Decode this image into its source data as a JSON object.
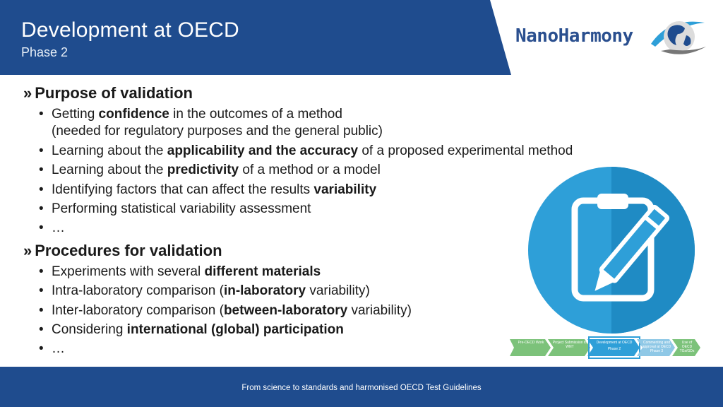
{
  "header": {
    "title": "Development at OECD",
    "subtitle": "Phase 2",
    "brand": "NanoHarmony",
    "band_color": "#1f4c8e"
  },
  "sections": [
    {
      "title": "Purpose of validation",
      "items": [
        {
          "pre": "Getting ",
          "bold": "confidence",
          "post": " in the outcomes of a method",
          "cont": "(needed for regulatory purposes and the general public)"
        },
        {
          "pre": "Learning about the ",
          "bold": "applicability and the accuracy",
          "post": " of a proposed experimental method"
        },
        {
          "pre": "Learning about the ",
          "bold": "predictivity",
          "post": " of a method or a model"
        },
        {
          "pre": "Identifying factors that can affect the results ",
          "bold": "variability",
          "post": ""
        },
        {
          "pre": "Performing statistical variability assessment",
          "bold": "",
          "post": ""
        },
        {
          "pre": "…",
          "bold": "",
          "post": ""
        }
      ]
    },
    {
      "title": "Procedures for validation",
      "items": [
        {
          "pre": "Experiments with several ",
          "bold": "different materials",
          "post": ""
        },
        {
          "pre": "Intra-laboratory comparison (",
          "bold": "in-laboratory",
          "post": " variability)"
        },
        {
          "pre": "Inter-laboratory comparison (",
          "bold": "between-laboratory",
          "post": " variability)"
        },
        {
          "pre": "Considering ",
          "bold": "international (global) participation",
          "post": ""
        },
        {
          "pre": "…",
          "bold": "",
          "post": ""
        }
      ]
    }
  ],
  "flow": {
    "steps": [
      {
        "label": "Pre-OECD Work",
        "state": "done"
      },
      {
        "label": "Project Submission to WNT",
        "state": "done"
      },
      {
        "label": "Development at OECD",
        "state": "current",
        "phase": "Phase 2"
      },
      {
        "label": "Commenting and approval at OECD",
        "state": "todo",
        "phase": "Phase 3"
      },
      {
        "label": "Use of OECD TGs/GDs",
        "state": "done"
      }
    ]
  },
  "footer": {
    "text": "From science to standards and harmonised OECD Test Guidelines"
  },
  "icons": {
    "clipboard": "clipboard-pencil-icon",
    "logo": "globe-logo-icon"
  }
}
